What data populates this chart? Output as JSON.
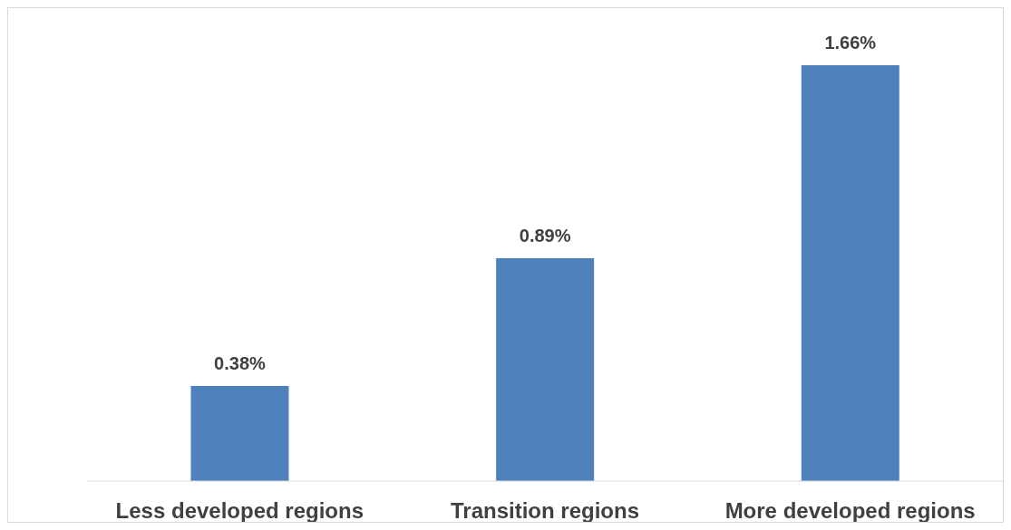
{
  "chart_data": {
    "type": "bar",
    "categories": [
      "Less developed regions",
      "Transition regions",
      "More developed regions"
    ],
    "values": [
      0.38,
      0.89,
      1.66
    ],
    "color": "#4f81bd",
    "value_labels": [
      "0.38%",
      "0.89%",
      "1.66%"
    ],
    "grid": false
  }
}
